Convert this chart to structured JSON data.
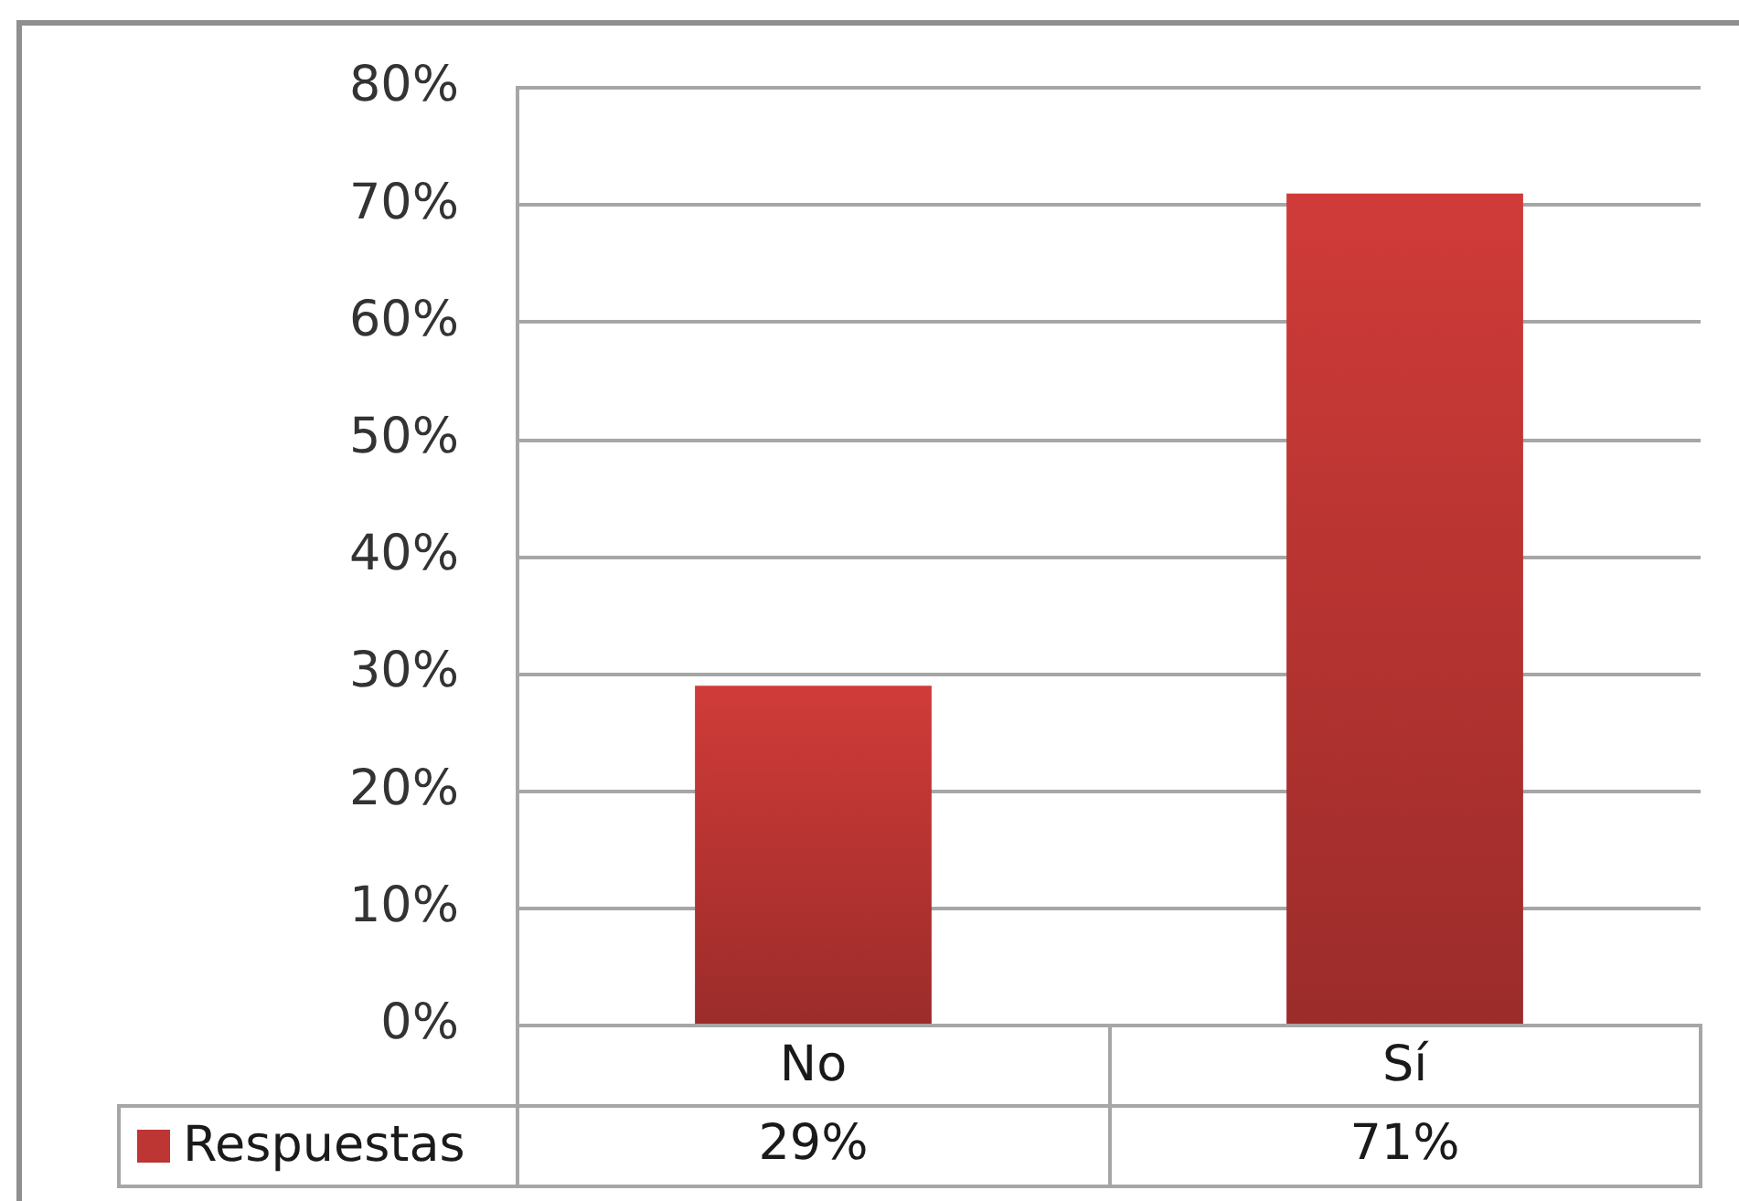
{
  "chart_data": {
    "type": "bar",
    "categories": [
      "No",
      "Sí"
    ],
    "series": [
      {
        "name": "Respuestas",
        "color": "#bd3633",
        "values": [
          29,
          71
        ],
        "value_labels": [
          "29%",
          "71%"
        ]
      }
    ],
    "ylim": [
      0,
      80
    ],
    "yticks": [
      {
        "value": 0,
        "label": "0%"
      },
      {
        "value": 10,
        "label": "10%"
      },
      {
        "value": 20,
        "label": "20%"
      },
      {
        "value": 30,
        "label": "30%"
      },
      {
        "value": 40,
        "label": "40%"
      },
      {
        "value": 50,
        "label": "50%"
      },
      {
        "value": 60,
        "label": "60%"
      },
      {
        "value": 70,
        "label": "70%"
      },
      {
        "value": 80,
        "label": "80%"
      }
    ],
    "grid": "y",
    "legend": "bottom"
  }
}
